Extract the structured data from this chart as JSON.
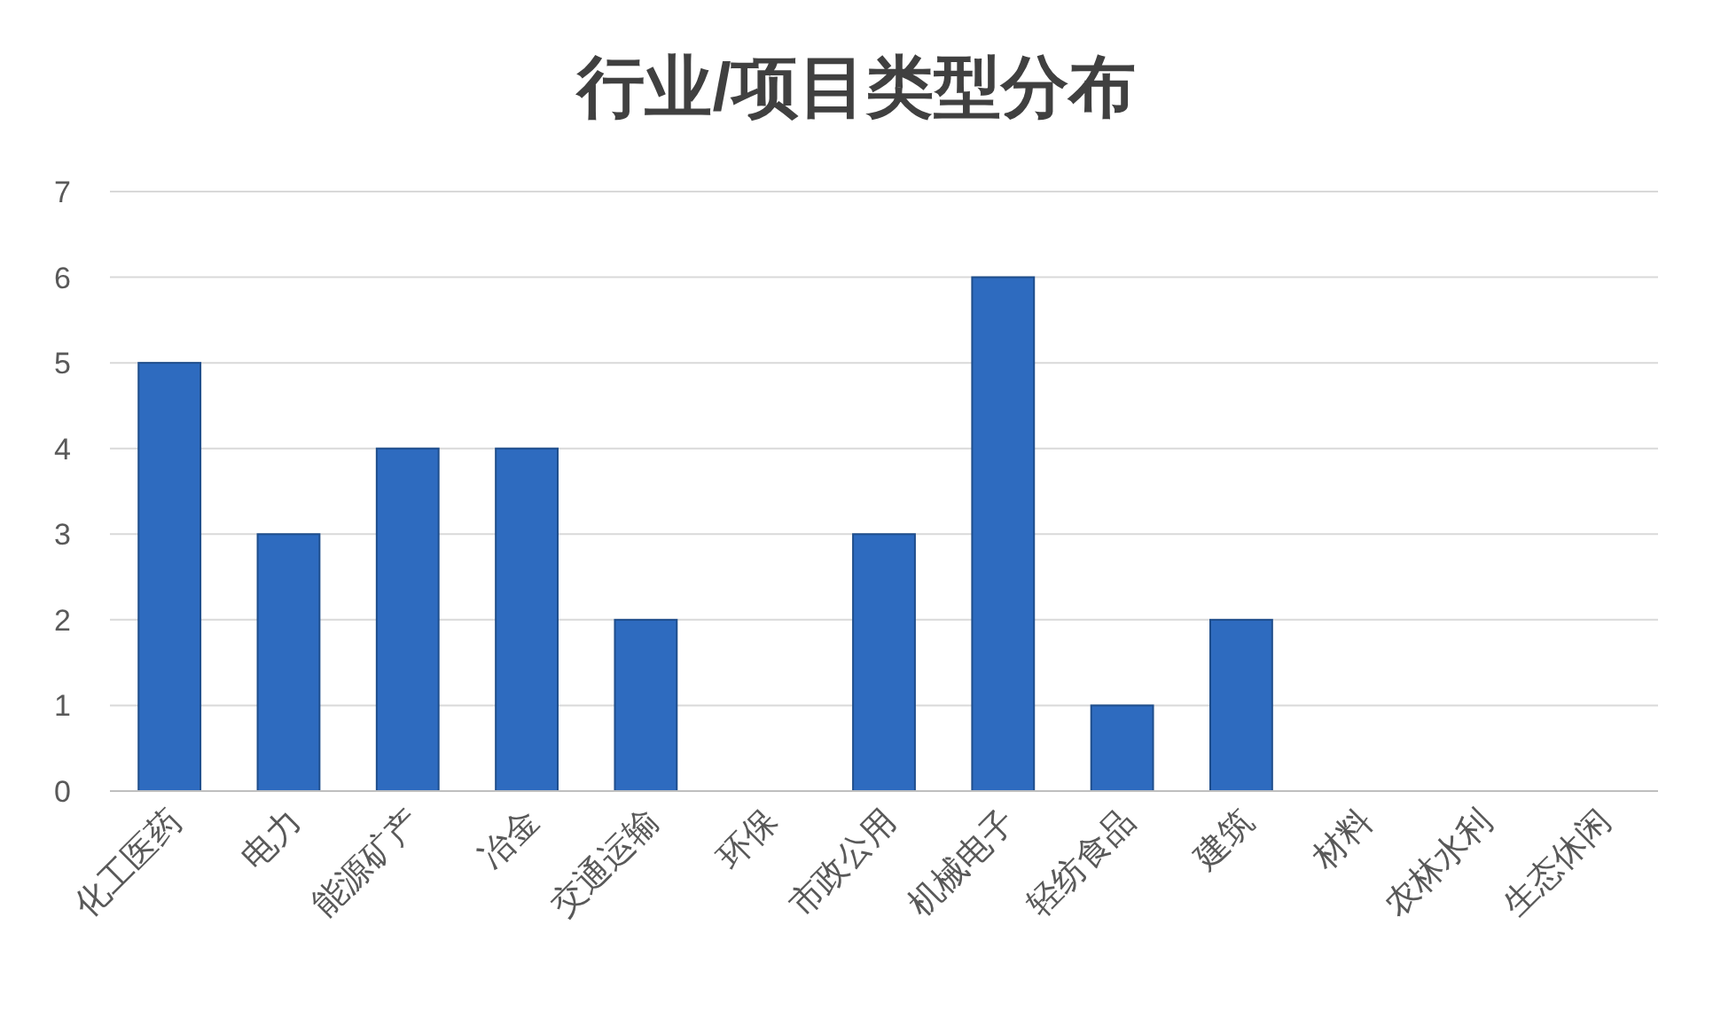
{
  "chart_data": {
    "type": "bar",
    "title": "行业/项目类型分布",
    "categories": [
      "化工医药",
      "电力",
      "能源矿产",
      "冶金",
      "交通运输",
      "环保",
      "市政公用",
      "机械电子",
      "轻纺食品",
      "建筑",
      "材料",
      "农林水利",
      "生态休闲"
    ],
    "values": [
      5,
      3,
      4,
      4,
      2,
      0,
      3,
      6,
      1,
      2,
      0,
      0,
      0
    ],
    "color": "#2e6bbf",
    "ylim": [
      0,
      7
    ],
    "yticks": [
      0,
      1,
      2,
      3,
      4,
      5,
      6,
      7
    ],
    "grid": "y"
  }
}
